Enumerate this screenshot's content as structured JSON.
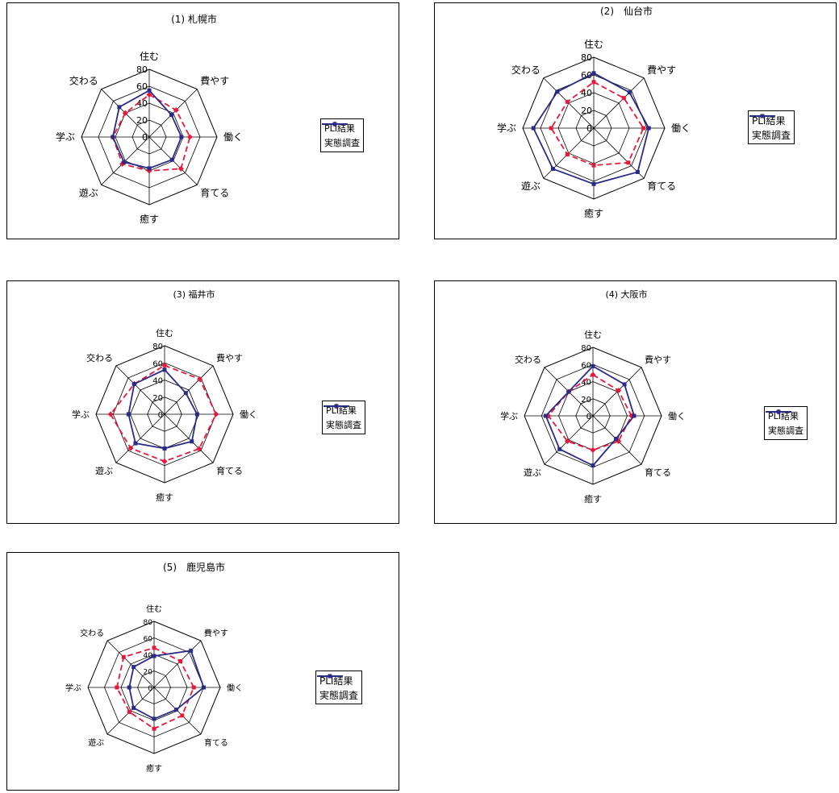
{
  "colors": {
    "pli": "#e8183a",
    "survey": "#2a2a88"
  },
  "chart_data": [
    {
      "type": "radar",
      "title": "(1) 札幌市",
      "axes": [
        "住む",
        "費やす",
        "働く",
        "育てる",
        "癒す",
        "遊ぶ",
        "学ぶ",
        "交わる"
      ],
      "ticks": [
        "0",
        "20",
        "40",
        "60",
        "80"
      ],
      "rlim": [
        0,
        80
      ],
      "legend_position": "right",
      "series": [
        {
          "name": "PLI結果",
          "marker": "diamond",
          "values": [
            50,
            45,
            48,
            53,
            40,
            45,
            43,
            40
          ]
        },
        {
          "name": "実態調査",
          "marker": "square",
          "values": [
            55,
            37,
            38,
            38,
            37,
            42,
            43,
            50
          ]
        }
      ]
    },
    {
      "type": "radar",
      "title": "(2)　仙台市",
      "axes": [
        "住む",
        "費やす",
        "働く",
        "育てる",
        "癒す",
        "遊ぶ",
        "学ぶ",
        "交わる"
      ],
      "ticks": [
        "0",
        "20",
        "40",
        "60",
        "80"
      ],
      "rlim": [
        0,
        80
      ],
      "legend_position": "right",
      "series": [
        {
          "name": "PLI結果",
          "marker": "square",
          "values": [
            52,
            48,
            56,
            55,
            42,
            42,
            48,
            42
          ]
        },
        {
          "name": "実態調査",
          "marker": "square",
          "values": [
            62,
            57,
            62,
            70,
            63,
            65,
            68,
            58
          ]
        }
      ]
    },
    {
      "type": "radar",
      "title": "(3) 福井市",
      "axes": [
        "住む",
        "費やす",
        "働く",
        "育てる",
        "癒す",
        "遊ぶ",
        "学ぶ",
        "交わる"
      ],
      "ticks": [
        "0",
        "20",
        "40",
        "60",
        "80"
      ],
      "rlim": [
        0,
        80
      ],
      "legend_position": "right",
      "series": [
        {
          "name": "PLI結果",
          "marker": "diamond",
          "values": [
            57,
            58,
            60,
            57,
            55,
            56,
            63,
            50
          ]
        },
        {
          "name": "実態調査",
          "marker": "square",
          "values": [
            52,
            35,
            38,
            45,
            40,
            48,
            42,
            50
          ]
        }
      ]
    },
    {
      "type": "radar",
      "title": "(4) 大阪市",
      "axes": [
        "住む",
        "費やす",
        "働く",
        "育てる",
        "癒す",
        "遊ぶ",
        "学ぶ",
        "交わる"
      ],
      "ticks": [
        "0",
        "20",
        "40",
        "60",
        "80"
      ],
      "rlim": [
        0,
        80
      ],
      "legend_position": "right",
      "series": [
        {
          "name": "PLI結果",
          "marker": "diamond",
          "values": [
            48,
            42,
            45,
            42,
            40,
            42,
            52,
            40
          ]
        },
        {
          "name": "実態調査",
          "marker": "square",
          "values": [
            58,
            52,
            48,
            38,
            58,
            55,
            55,
            40
          ]
        }
      ]
    },
    {
      "type": "radar",
      "title": "(5)　鹿児島市",
      "axes": [
        "住む",
        "費やす",
        "働く",
        "育てる",
        "癒す",
        "遊ぶ",
        "学ぶ",
        "交わる"
      ],
      "ticks": [
        "0",
        "20",
        "40",
        "60",
        "80"
      ],
      "rlim": [
        0,
        80
      ],
      "legend_position": "right",
      "series": [
        {
          "name": "PLI結果",
          "marker": "square",
          "values": [
            48,
            45,
            48,
            48,
            50,
            42,
            45,
            52
          ]
        },
        {
          "name": "実態調査",
          "marker": "square",
          "values": [
            38,
            63,
            60,
            38,
            38,
            35,
            30,
            35
          ]
        }
      ]
    }
  ]
}
